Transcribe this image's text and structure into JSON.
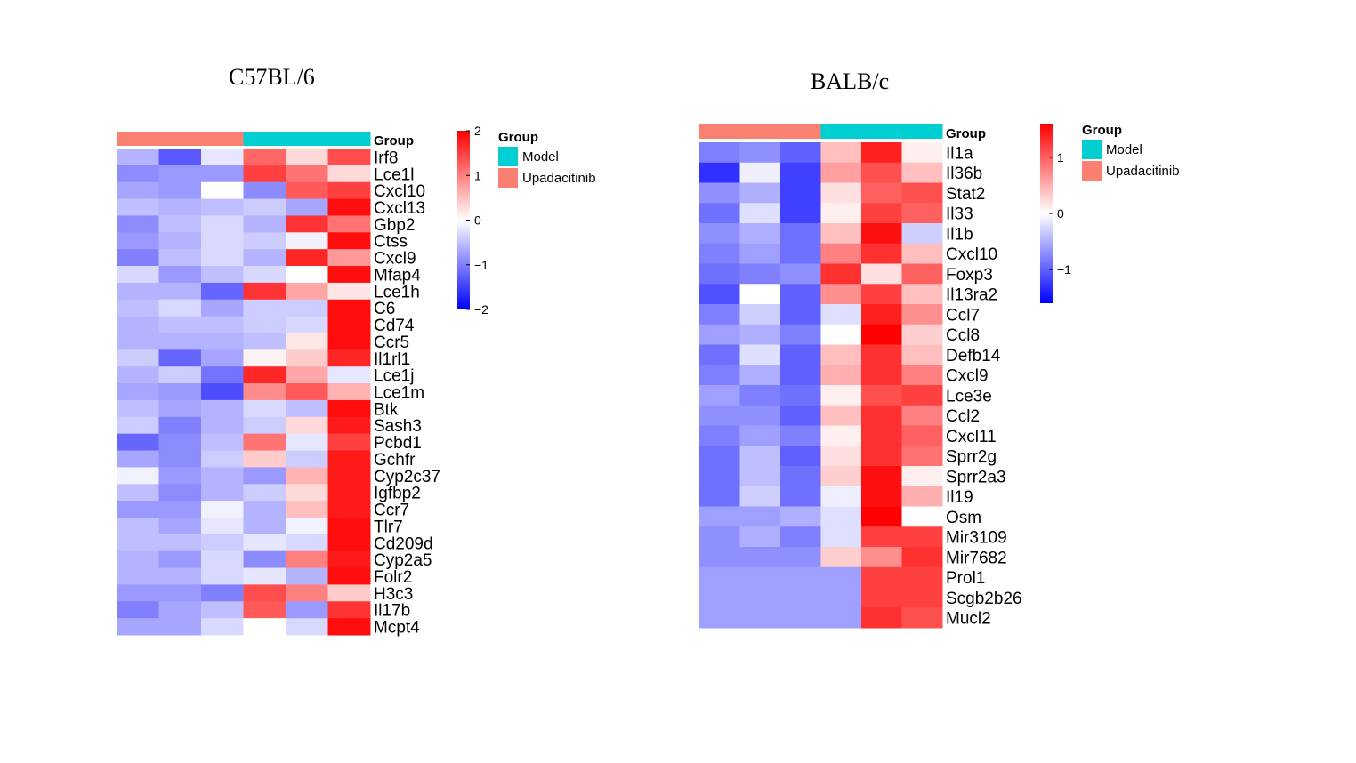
{
  "colors": {
    "high": "#ff0000",
    "mid": "#ffffff",
    "low": "#0000ff",
    "model": "#00ced1",
    "upadacitinib": "#fa8072"
  },
  "legend": {
    "title": "Group",
    "items": [
      "Model",
      "Upadacitinib"
    ]
  },
  "chart_data": [
    {
      "type": "heatmap",
      "title": "C57BL/6",
      "annotation_label": "Group",
      "column_groups": [
        "Upadacitinib",
        "Upadacitinib",
        "Upadacitinib",
        "Model",
        "Model",
        "Model"
      ],
      "color_scale": {
        "ticks": [
          2,
          1,
          0,
          -1,
          -2
        ],
        "tick_labels": [
          "2",
          "1",
          "0",
          "−1",
          "−2"
        ],
        "range": [
          -2,
          2
        ]
      },
      "rows": [
        "Irf8",
        "Lce1l",
        "Cxcl10",
        "Cxcl13",
        "Gbp2",
        "Ctss",
        "Cxcl9",
        "Mfap4",
        "Lce1h",
        "C6",
        "Cd74",
        "Ccr5",
        "Il1rl1",
        "Lce1j",
        "Lce1m",
        "Btk",
        "Sash3",
        "Pcbd1",
        "Gchfr",
        "Cyp2c37",
        "Igfbp2",
        "Ccr7",
        "Tlr7",
        "Cd209d",
        "Cyp2a5",
        "Folr2",
        "H3c3",
        "Il17b",
        "Mcpt4"
      ],
      "values": [
        [
          -0.6,
          -1.3,
          -0.2,
          1.2,
          0.3,
          1.4
        ],
        [
          -0.9,
          -0.8,
          -0.8,
          1.5,
          1.1,
          0.3
        ],
        [
          -0.7,
          -0.8,
          0.0,
          -0.9,
          1.3,
          1.5
        ],
        [
          -0.5,
          -0.6,
          -0.5,
          -0.4,
          -0.7,
          1.9
        ],
        [
          -0.9,
          -0.5,
          -0.3,
          -0.6,
          1.6,
          1.1
        ],
        [
          -0.8,
          -0.6,
          -0.3,
          -0.4,
          -0.1,
          1.9
        ],
        [
          -1.0,
          -0.5,
          -0.3,
          -0.6,
          1.7,
          0.8
        ],
        [
          -0.3,
          -0.8,
          -0.5,
          -0.3,
          0.0,
          1.9
        ],
        [
          -0.6,
          -0.6,
          -1.2,
          1.6,
          0.7,
          0.2
        ],
        [
          -0.5,
          -0.3,
          -0.7,
          -0.4,
          -0.4,
          1.9
        ],
        [
          -0.6,
          -0.5,
          -0.5,
          -0.4,
          -0.3,
          1.9
        ],
        [
          -0.6,
          -0.6,
          -0.6,
          -0.5,
          0.2,
          1.9
        ],
        [
          -0.4,
          -1.2,
          -0.7,
          0.1,
          0.4,
          1.7
        ],
        [
          -0.6,
          -0.4,
          -1.1,
          1.7,
          0.7,
          -0.2
        ],
        [
          -0.7,
          -0.8,
          -1.4,
          0.9,
          1.3,
          0.6
        ],
        [
          -0.5,
          -0.7,
          -0.6,
          -0.3,
          -0.5,
          1.9
        ],
        [
          -0.4,
          -1.0,
          -0.6,
          -0.4,
          0.3,
          1.8
        ],
        [
          -1.2,
          -0.9,
          -0.5,
          1.1,
          -0.2,
          1.5
        ],
        [
          -0.7,
          -0.9,
          -0.4,
          0.4,
          -0.4,
          1.8
        ],
        [
          -0.1,
          -0.8,
          -0.6,
          -0.8,
          0.6,
          1.8
        ],
        [
          -0.5,
          -0.9,
          -0.6,
          -0.4,
          0.3,
          1.8
        ],
        [
          -0.8,
          -0.8,
          -0.1,
          -0.6,
          0.5,
          1.8
        ],
        [
          -0.5,
          -0.7,
          -0.2,
          -0.6,
          -0.1,
          1.9
        ],
        [
          -0.5,
          -0.5,
          -0.4,
          -0.2,
          -0.3,
          1.9
        ],
        [
          -0.6,
          -0.8,
          -0.3,
          -0.9,
          1.0,
          1.8
        ],
        [
          -0.6,
          -0.6,
          -0.3,
          -0.2,
          -0.6,
          1.9
        ],
        [
          -0.8,
          -0.8,
          -1.0,
          1.4,
          1.0,
          0.4
        ],
        [
          -1.0,
          -0.7,
          -0.5,
          1.3,
          -0.8,
          1.6
        ],
        [
          -0.7,
          -0.7,
          -0.3,
          0.0,
          -0.3,
          1.9
        ]
      ]
    },
    {
      "type": "heatmap",
      "title": "BALB/c",
      "annotation_label": "Group",
      "column_groups": [
        "Upadacitinib",
        "Upadacitinib",
        "Upadacitinib",
        "Model",
        "Model",
        "Model"
      ],
      "color_scale": {
        "ticks": [
          1,
          0,
          -1
        ],
        "tick_labels": [
          "1",
          "0",
          "−1"
        ],
        "range": [
          -1.6,
          1.6
        ]
      },
      "rows": [
        "Il1a",
        "Il36b",
        "Stat2",
        "Il33",
        "Il1b",
        "Cxcl10",
        "Foxp3",
        "Il13ra2",
        "Ccl7",
        "Ccl8",
        "Defb14",
        "Cxcl9",
        "Lce3e",
        "Ccl2",
        "Cxcl11",
        "Sprr2g",
        "Sprr2a3",
        "Il19",
        "Osm",
        "Mir3109",
        "Mir7682",
        "Prol1",
        "Scgb2b26",
        "Mucl2"
      ],
      "values": [
        [
          -0.8,
          -0.7,
          -1.0,
          0.4,
          1.4,
          0.1
        ],
        [
          -1.3,
          -0.1,
          -1.2,
          0.6,
          1.1,
          0.4
        ],
        [
          -0.7,
          -0.5,
          -1.2,
          0.2,
          1.0,
          1.1
        ],
        [
          -0.9,
          -0.2,
          -1.2,
          0.1,
          1.2,
          1.0
        ],
        [
          -0.7,
          -0.5,
          -0.9,
          0.4,
          1.5,
          -0.3
        ],
        [
          -0.8,
          -0.6,
          -0.9,
          0.8,
          1.3,
          0.4
        ],
        [
          -0.9,
          -0.8,
          -0.7,
          1.3,
          0.2,
          1.0
        ],
        [
          -1.1,
          0.0,
          -1.0,
          0.7,
          1.2,
          0.4
        ],
        [
          -0.8,
          -0.3,
          -1.0,
          -0.2,
          1.4,
          0.7
        ],
        [
          -0.6,
          -0.5,
          -0.8,
          0.0,
          1.6,
          0.3
        ],
        [
          -0.9,
          -0.2,
          -1.0,
          0.4,
          1.3,
          0.4
        ],
        [
          -0.8,
          -0.5,
          -1.0,
          0.5,
          1.3,
          0.8
        ],
        [
          -0.6,
          -0.8,
          -0.9,
          0.1,
          1.1,
          1.2
        ],
        [
          -0.7,
          -0.7,
          -1.0,
          0.4,
          1.3,
          0.8
        ],
        [
          -0.8,
          -0.6,
          -0.8,
          0.1,
          1.3,
          1.0
        ],
        [
          -0.9,
          -0.4,
          -1.0,
          0.2,
          1.3,
          0.9
        ],
        [
          -0.9,
          -0.4,
          -0.9,
          0.3,
          1.5,
          0.1
        ],
        [
          -0.9,
          -0.3,
          -0.9,
          -0.1,
          1.5,
          0.5
        ],
        [
          -0.6,
          -0.6,
          -0.5,
          -0.2,
          1.6,
          0.0
        ],
        [
          -0.7,
          -0.5,
          -0.8,
          -0.2,
          1.2,
          1.2
        ],
        [
          -0.7,
          -0.7,
          -0.7,
          0.3,
          0.7,
          1.3
        ],
        [
          -0.6,
          -0.6,
          -0.6,
          -0.6,
          1.2,
          1.2
        ],
        [
          -0.6,
          -0.6,
          -0.6,
          -0.6,
          1.2,
          1.2
        ],
        [
          -0.6,
          -0.6,
          -0.6,
          -0.6,
          1.3,
          1.1
        ]
      ]
    }
  ]
}
